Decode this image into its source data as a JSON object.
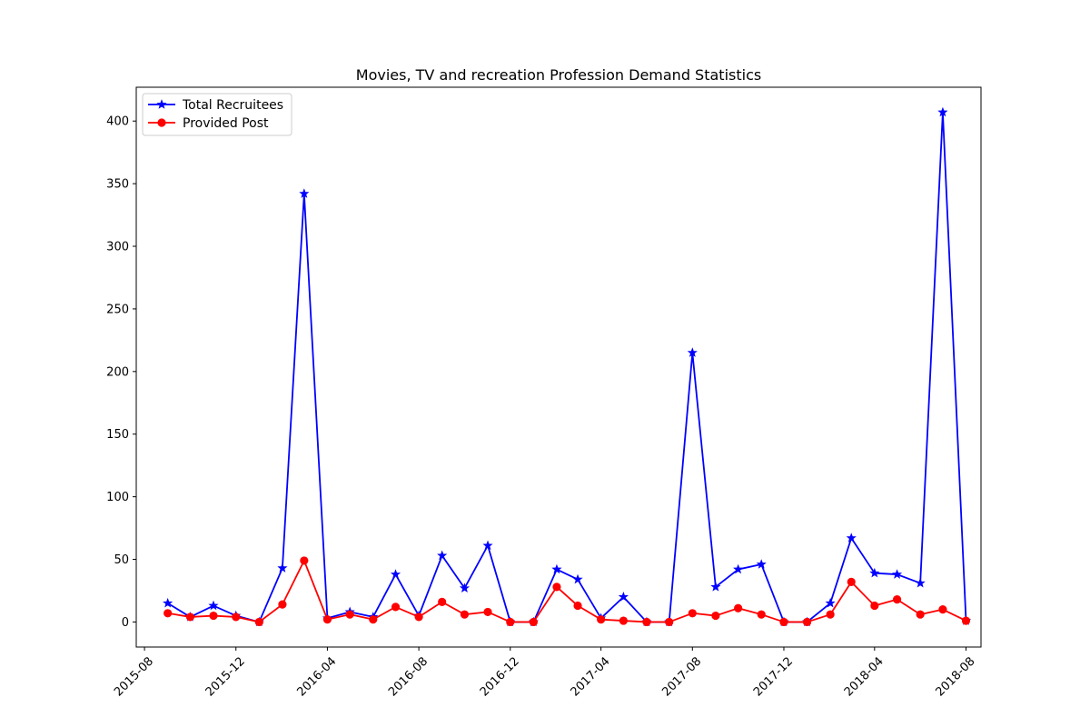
{
  "chart_data": {
    "type": "line",
    "title": "Movies, TV and recreation Profession Demand Statistics",
    "xlabel": "",
    "ylabel": "",
    "x_ticks": [
      "2015-08",
      "2015-12",
      "2016-04",
      "2016-08",
      "2016-12",
      "2017-04",
      "2017-08",
      "2017-12",
      "2018-04",
      "2018-08"
    ],
    "y_ticks": [
      0,
      50,
      100,
      150,
      200,
      250,
      300,
      350,
      400
    ],
    "xlim": [
      "2015-07-21",
      "2018-08-21"
    ],
    "ylim": [
      -20,
      427
    ],
    "grid": false,
    "legend_position": "upper-left",
    "x": [
      "2015-09-01",
      "2015-10-01",
      "2015-11-01",
      "2015-12-01",
      "2016-01-01",
      "2016-02-01",
      "2016-03-01",
      "2016-04-01",
      "2016-05-01",
      "2016-06-01",
      "2016-07-01",
      "2016-08-01",
      "2016-09-01",
      "2016-10-01",
      "2016-11-01",
      "2016-12-01",
      "2017-01-01",
      "2017-02-01",
      "2017-03-01",
      "2017-04-01",
      "2017-05-01",
      "2017-06-01",
      "2017-07-01",
      "2017-08-01",
      "2017-09-01",
      "2017-10-01",
      "2017-11-01",
      "2017-12-01",
      "2018-01-01",
      "2018-02-01",
      "2018-03-01",
      "2018-04-01",
      "2018-05-01",
      "2018-06-01",
      "2018-07-01",
      "2018-08-01"
    ],
    "series": [
      {
        "name": "Total Recruitees",
        "color": "#0000ff",
        "marker": "star",
        "values": [
          15,
          4,
          13,
          5,
          0,
          43,
          342,
          3,
          8,
          4,
          38,
          5,
          53,
          27,
          61,
          0,
          0,
          42,
          34,
          3,
          20,
          0,
          0,
          215,
          28,
          42,
          46,
          0,
          0,
          15,
          67,
          39,
          38,
          31,
          407,
          1
        ]
      },
      {
        "name": "Provided Post",
        "color": "#ff0000",
        "marker": "circle",
        "values": [
          7,
          4,
          5,
          4,
          0,
          14,
          49,
          2,
          6,
          2,
          12,
          4,
          16,
          6,
          8,
          0,
          0,
          28,
          13,
          2,
          1,
          0,
          0,
          7,
          5,
          11,
          6,
          0,
          0,
          6,
          32,
          13,
          18,
          6,
          10,
          1
        ]
      }
    ]
  }
}
